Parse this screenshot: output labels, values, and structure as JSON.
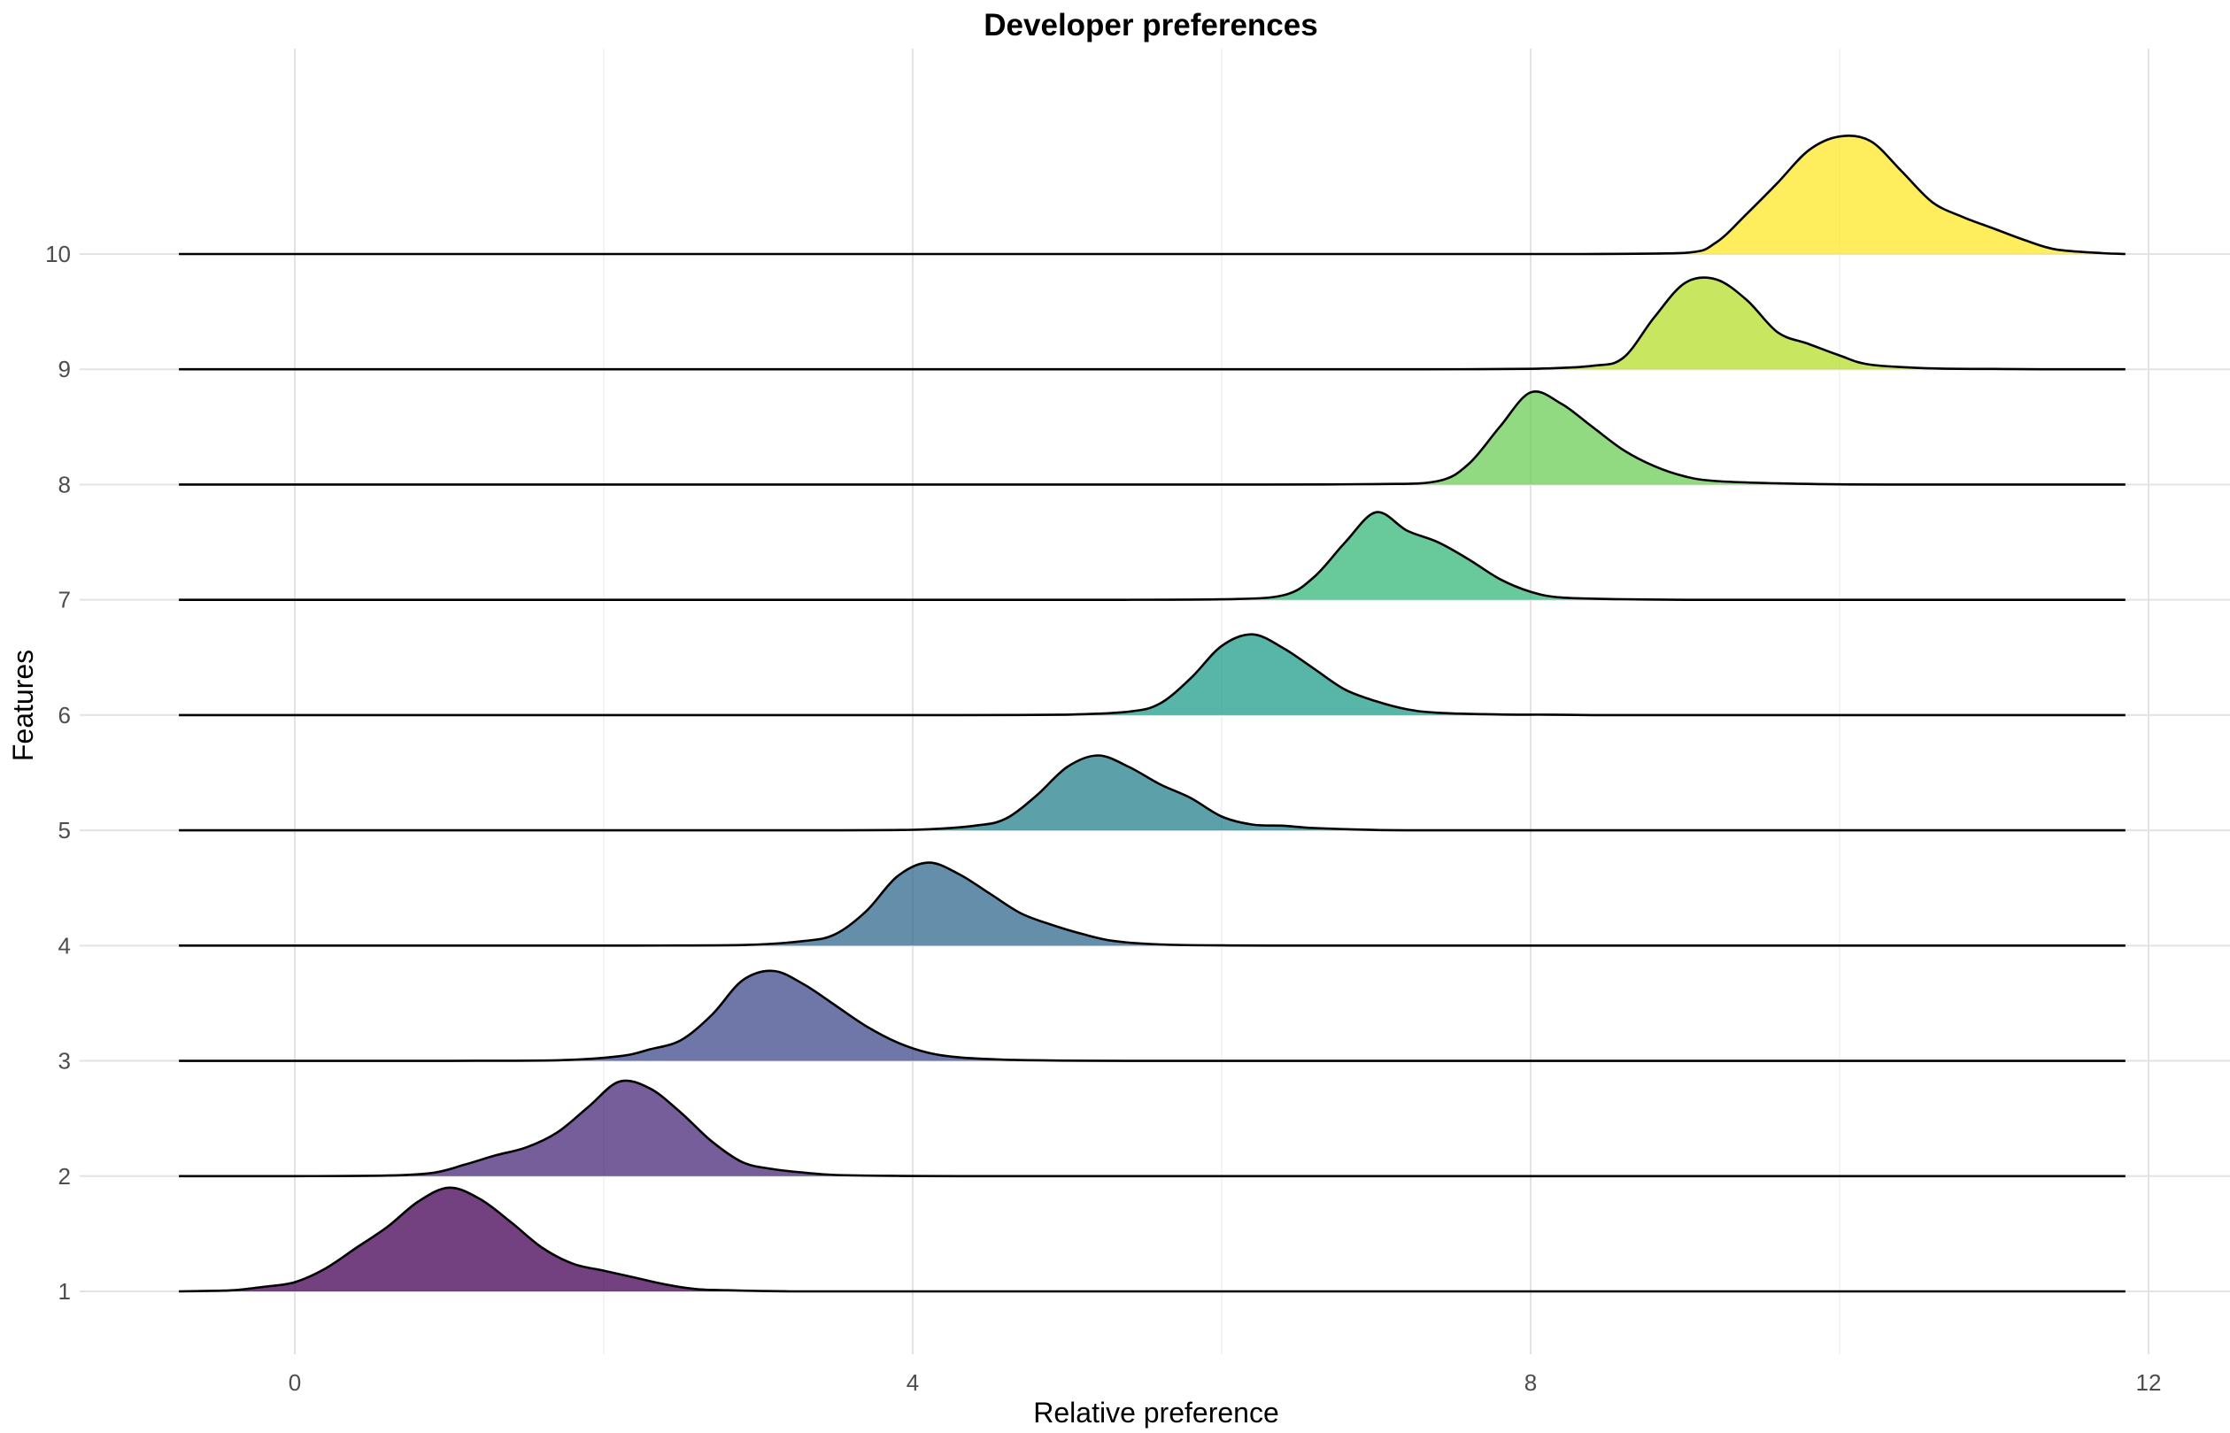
{
  "chart_data": {
    "type": "ridgeline",
    "title": "Developer preferences",
    "xlabel": "Relative preference",
    "ylabel": "Features",
    "xlim": [
      -1.5,
      12.5
    ],
    "ylim": [
      0.4,
      10.5
    ],
    "x_range_line": [
      -0.75,
      11.85
    ],
    "x_ticks": [
      0,
      4,
      8,
      12
    ],
    "x_minor_ticks": [
      2,
      6,
      10
    ],
    "y_ticks": [
      1,
      2,
      3,
      4,
      5,
      6,
      7,
      8,
      9,
      10
    ],
    "fill_opacity": 0.75,
    "series": [
      {
        "name": "1",
        "baseline": 1,
        "color": "#440154",
        "density": [
          [
            -0.75,
            0
          ],
          [
            -0.6,
            0.003
          ],
          [
            -0.4,
            0.01
          ],
          [
            -0.2,
            0.04
          ],
          [
            0,
            0.08
          ],
          [
            0.2,
            0.2
          ],
          [
            0.4,
            0.38
          ],
          [
            0.6,
            0.56
          ],
          [
            0.8,
            0.78
          ],
          [
            1.0,
            0.9
          ],
          [
            1.2,
            0.8
          ],
          [
            1.4,
            0.6
          ],
          [
            1.6,
            0.38
          ],
          [
            1.8,
            0.24
          ],
          [
            2.0,
            0.18
          ],
          [
            2.2,
            0.12
          ],
          [
            2.4,
            0.06
          ],
          [
            2.6,
            0.02
          ],
          [
            2.8,
            0.01
          ],
          [
            3.0,
            0.004
          ],
          [
            3.2,
            0
          ]
        ]
      },
      {
        "name": "2",
        "baseline": 2,
        "color": "#482878",
        "density": [
          [
            0.0,
            0
          ],
          [
            0.6,
            0.005
          ],
          [
            0.9,
            0.03
          ],
          [
            1.1,
            0.1
          ],
          [
            1.3,
            0.18
          ],
          [
            1.5,
            0.25
          ],
          [
            1.7,
            0.38
          ],
          [
            1.9,
            0.6
          ],
          [
            2.1,
            0.82
          ],
          [
            2.3,
            0.76
          ],
          [
            2.5,
            0.55
          ],
          [
            2.7,
            0.3
          ],
          [
            2.9,
            0.12
          ],
          [
            3.1,
            0.06
          ],
          [
            3.3,
            0.03
          ],
          [
            3.5,
            0.01
          ],
          [
            3.9,
            0.002
          ],
          [
            4.3,
            0
          ]
        ]
      },
      {
        "name": "3",
        "baseline": 3,
        "color": "#3e4989",
        "density": [
          [
            1.0,
            0
          ],
          [
            1.7,
            0.005
          ],
          [
            2.1,
            0.04
          ],
          [
            2.3,
            0.1
          ],
          [
            2.5,
            0.18
          ],
          [
            2.7,
            0.4
          ],
          [
            2.9,
            0.7
          ],
          [
            3.1,
            0.78
          ],
          [
            3.3,
            0.66
          ],
          [
            3.5,
            0.48
          ],
          [
            3.7,
            0.3
          ],
          [
            3.9,
            0.16
          ],
          [
            4.1,
            0.07
          ],
          [
            4.3,
            0.03
          ],
          [
            4.6,
            0.01
          ],
          [
            5.0,
            0.002
          ],
          [
            5.4,
            0
          ]
        ]
      },
      {
        "name": "4",
        "baseline": 4,
        "color": "#31688e",
        "density": [
          [
            2.2,
            0
          ],
          [
            2.9,
            0.005
          ],
          [
            3.3,
            0.04
          ],
          [
            3.5,
            0.1
          ],
          [
            3.7,
            0.3
          ],
          [
            3.9,
            0.6
          ],
          [
            4.1,
            0.72
          ],
          [
            4.3,
            0.62
          ],
          [
            4.5,
            0.45
          ],
          [
            4.7,
            0.28
          ],
          [
            4.9,
            0.18
          ],
          [
            5.1,
            0.1
          ],
          [
            5.3,
            0.04
          ],
          [
            5.6,
            0.01
          ],
          [
            6.0,
            0.002
          ],
          [
            6.3,
            0
          ]
        ]
      },
      {
        "name": "5",
        "baseline": 5,
        "color": "#26828e",
        "density": [
          [
            3.3,
            0
          ],
          [
            4.0,
            0.005
          ],
          [
            4.4,
            0.04
          ],
          [
            4.6,
            0.1
          ],
          [
            4.8,
            0.3
          ],
          [
            5.0,
            0.55
          ],
          [
            5.2,
            0.65
          ],
          [
            5.4,
            0.55
          ],
          [
            5.6,
            0.4
          ],
          [
            5.8,
            0.28
          ],
          [
            6.0,
            0.12
          ],
          [
            6.2,
            0.05
          ],
          [
            6.4,
            0.04
          ],
          [
            6.6,
            0.02
          ],
          [
            7.0,
            0.003
          ],
          [
            7.3,
            0
          ]
        ]
      },
      {
        "name": "6",
        "baseline": 6,
        "color": "#1f9e89",
        "density": [
          [
            4.3,
            0
          ],
          [
            5.0,
            0.004
          ],
          [
            5.4,
            0.03
          ],
          [
            5.6,
            0.1
          ],
          [
            5.8,
            0.32
          ],
          [
            6.0,
            0.6
          ],
          [
            6.2,
            0.7
          ],
          [
            6.4,
            0.58
          ],
          [
            6.6,
            0.4
          ],
          [
            6.8,
            0.22
          ],
          [
            7.0,
            0.12
          ],
          [
            7.2,
            0.05
          ],
          [
            7.4,
            0.02
          ],
          [
            7.8,
            0.005
          ],
          [
            8.1,
            0.004
          ],
          [
            8.4,
            0
          ]
        ]
      },
      {
        "name": "7",
        "baseline": 7,
        "color": "#35b779",
        "density": [
          [
            5.3,
            0
          ],
          [
            6.0,
            0.004
          ],
          [
            6.4,
            0.04
          ],
          [
            6.6,
            0.2
          ],
          [
            6.8,
            0.5
          ],
          [
            7.0,
            0.76
          ],
          [
            7.2,
            0.6
          ],
          [
            7.4,
            0.5
          ],
          [
            7.6,
            0.35
          ],
          [
            7.8,
            0.18
          ],
          [
            8.0,
            0.07
          ],
          [
            8.2,
            0.02
          ],
          [
            8.6,
            0.005
          ],
          [
            9.0,
            0
          ]
        ]
      },
      {
        "name": "8",
        "baseline": 8,
        "color": "#6ece58",
        "density": [
          [
            6.3,
            0
          ],
          [
            7.0,
            0.004
          ],
          [
            7.4,
            0.03
          ],
          [
            7.6,
            0.18
          ],
          [
            7.8,
            0.5
          ],
          [
            8.0,
            0.8
          ],
          [
            8.2,
            0.7
          ],
          [
            8.4,
            0.5
          ],
          [
            8.6,
            0.3
          ],
          [
            8.8,
            0.16
          ],
          [
            9.0,
            0.07
          ],
          [
            9.2,
            0.03
          ],
          [
            9.6,
            0.01
          ],
          [
            10.0,
            0.002
          ],
          [
            10.3,
            0
          ]
        ]
      },
      {
        "name": "9",
        "baseline": 9,
        "color": "#b5de2b",
        "density": [
          [
            7.3,
            0
          ],
          [
            8.0,
            0.004
          ],
          [
            8.4,
            0.03
          ],
          [
            8.6,
            0.1
          ],
          [
            8.8,
            0.45
          ],
          [
            9.0,
            0.75
          ],
          [
            9.2,
            0.78
          ],
          [
            9.4,
            0.6
          ],
          [
            9.6,
            0.32
          ],
          [
            9.8,
            0.22
          ],
          [
            10.0,
            0.12
          ],
          [
            10.2,
            0.04
          ],
          [
            10.6,
            0.008
          ],
          [
            11.0,
            0.003
          ],
          [
            11.3,
            0
          ]
        ]
      },
      {
        "name": "10",
        "baseline": 10,
        "color": "#fde725",
        "density": [
          [
            8.3,
            0
          ],
          [
            9.0,
            0.01
          ],
          [
            9.2,
            0.1
          ],
          [
            9.4,
            0.35
          ],
          [
            9.6,
            0.62
          ],
          [
            9.8,
            0.9
          ],
          [
            10.0,
            1.02
          ],
          [
            10.2,
            0.98
          ],
          [
            10.4,
            0.72
          ],
          [
            10.6,
            0.45
          ],
          [
            10.8,
            0.32
          ],
          [
            11.0,
            0.22
          ],
          [
            11.2,
            0.12
          ],
          [
            11.4,
            0.04
          ],
          [
            11.7,
            0.008
          ],
          [
            11.85,
            0
          ]
        ]
      }
    ]
  }
}
